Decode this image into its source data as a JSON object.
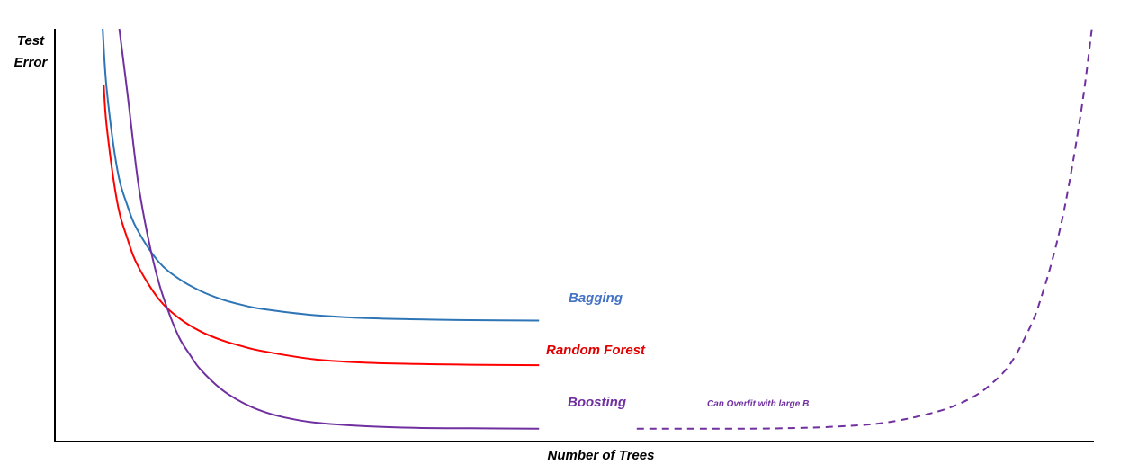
{
  "chart_data": {
    "type": "line",
    "title": "",
    "ylabel_lines": [
      "Test",
      "Error"
    ],
    "xlabel": "Number of Trees",
    "xlim": [
      0,
      100
    ],
    "ylim": [
      0,
      100
    ],
    "grid": false,
    "legend": "none",
    "series": [
      {
        "name": "Bagging",
        "color": "#2e75b6",
        "label_color": "#4472c4",
        "style": "solid",
        "x": [
          4.6,
          5.0,
          6.0,
          7.0,
          8.0,
          10.0,
          12.0,
          14.0,
          16.0,
          18.0,
          20.0,
          25.0,
          30.0,
          35.0,
          40.0,
          46.6
        ],
        "y": [
          100,
          85,
          66,
          57,
          51,
          43.5,
          39.3,
          36.5,
          34.5,
          33.1,
          32.1,
          30.6,
          29.9,
          29.6,
          29.4,
          29.3
        ]
      },
      {
        "name": "Random Forest",
        "color": "#ff0000",
        "label_color": "#e00000",
        "style": "solid",
        "x": [
          4.7,
          5.0,
          6.0,
          7.0,
          8.0,
          10.0,
          12.0,
          14.0,
          16.0,
          18.0,
          20.0,
          25.0,
          30.0,
          35.0,
          40.0,
          46.6
        ],
        "y": [
          86.5,
          76,
          58,
          49,
          42.5,
          34.5,
          29.8,
          26.7,
          24.6,
          23.1,
          21.9,
          19.9,
          19.1,
          18.8,
          18.6,
          18.5
        ]
      },
      {
        "name": "Boosting",
        "color": "#7030a0",
        "label_color": "#7030a0",
        "style": "solid",
        "x": [
          6.2,
          7.0,
          8.0,
          9.0,
          10.0,
          11.0,
          12.0,
          13.0,
          14.0,
          16.0,
          18.0,
          20.0,
          22.0,
          25.0,
          30.0,
          35.0,
          40.0,
          46.6
        ],
        "y": [
          100,
          84,
          63,
          49,
          38.5,
          31,
          25,
          21,
          17.5,
          12.7,
          9.5,
          7.3,
          5.9,
          4.6,
          3.7,
          3.3,
          3.2,
          3.1
        ],
        "overfit": {
          "style": "dashed",
          "x": [
            56,
            65,
            70,
            75,
            80,
            85,
            88,
            90,
            92,
            94,
            95,
            96,
            97,
            98,
            99,
            99.8
          ],
          "y": [
            3.1,
            3.1,
            3.2,
            3.6,
            4.6,
            7.3,
            10.3,
            13.7,
            19,
            28.5,
            35.5,
            44,
            54.5,
            68,
            84,
            100
          ]
        }
      }
    ],
    "annotations": {
      "overfit_note": "Can Overfit with large B"
    }
  }
}
